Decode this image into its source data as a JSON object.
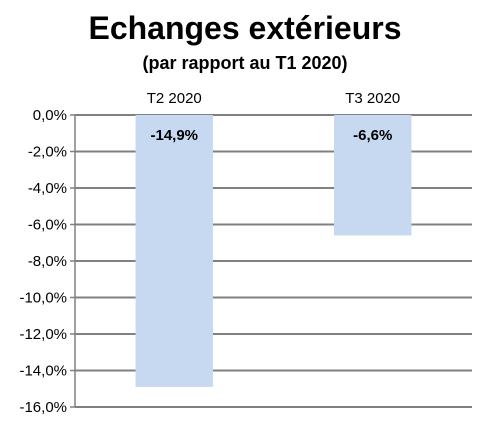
{
  "chart_data": {
    "type": "bar",
    "title": "Echanges extérieurs",
    "subtitle": "(par rapport au T1 2020)",
    "categories": [
      "T2 2020",
      "T3 2020"
    ],
    "values": [
      -14.9,
      -6.6
    ],
    "data_labels": [
      "-14,9%",
      "-6,6%"
    ],
    "xlabel": "",
    "ylabel": "",
    "ylim": [
      -16,
      0
    ],
    "y_ticks": [
      0,
      -2,
      -4,
      -6,
      -8,
      -10,
      -12,
      -14,
      -16
    ],
    "y_tick_labels": [
      "0,0%",
      "-2,0%",
      "-4,0%",
      "-6,0%",
      "-8,0%",
      "-10,0%",
      "-12,0%",
      "-14,0%",
      "-16,0%"
    ],
    "category_labels_position": "top",
    "grid": true,
    "legend": false,
    "bar_color": "#c6d9f1",
    "grid_color": "#808080"
  }
}
